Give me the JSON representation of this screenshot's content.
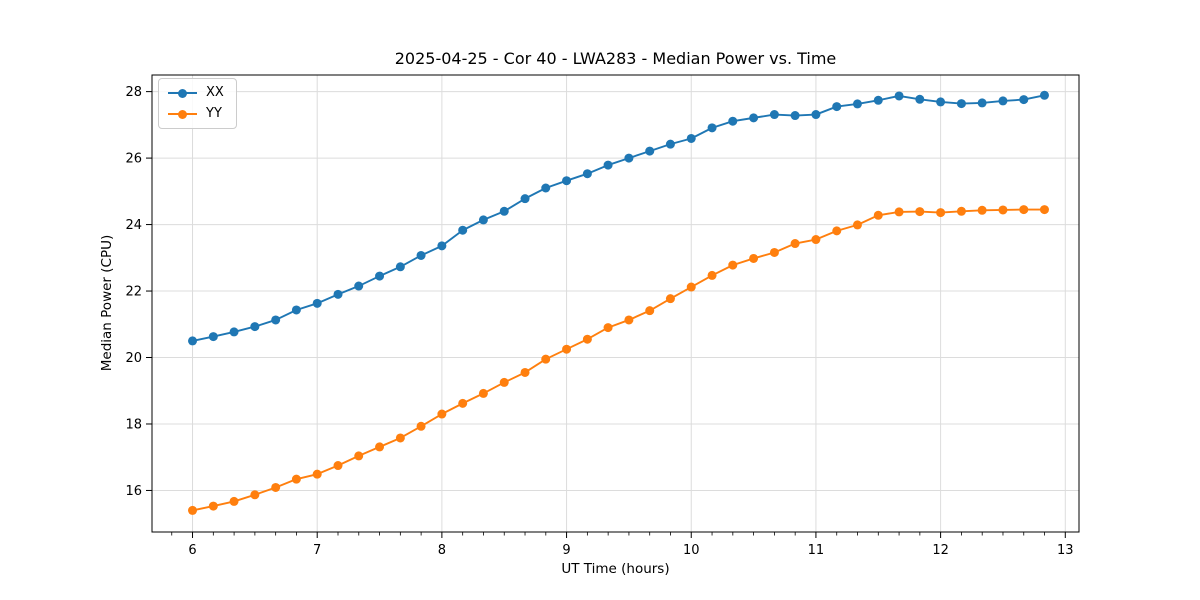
{
  "chart_data": {
    "type": "line",
    "title": "2025-04-25 - Cor 40 - LWA283 - Median Power vs. Time",
    "xlabel": "UT Time (hours)",
    "ylabel": "Median Power (CPU)",
    "xlim": [
      5.675,
      13.11
    ],
    "ylim": [
      14.75,
      28.5
    ],
    "x_ticks": [
      6,
      7,
      8,
      9,
      10,
      11,
      12,
      13
    ],
    "y_ticks": [
      16,
      18,
      20,
      22,
      24,
      26,
      28
    ],
    "x_minor_step": 0.16667,
    "grid": true,
    "grid_color": "#dcdcdc",
    "legend_position": "upper left",
    "colors": {
      "XX": "#1f77b4",
      "YY": "#ff7f0e"
    },
    "x": [
      6.0,
      6.167,
      6.333,
      6.5,
      6.667,
      6.833,
      7.0,
      7.167,
      7.333,
      7.5,
      7.667,
      7.833,
      8.0,
      8.167,
      8.333,
      8.5,
      8.667,
      8.833,
      9.0,
      9.167,
      9.333,
      9.5,
      9.667,
      9.833,
      10.0,
      10.167,
      10.333,
      10.5,
      10.667,
      10.833,
      11.0,
      11.167,
      11.333,
      11.5,
      11.667,
      11.833,
      12.0,
      12.167,
      12.333,
      12.5,
      12.667,
      12.833
    ],
    "series": [
      {
        "name": "XX",
        "values": [
          20.5,
          20.63,
          20.77,
          20.93,
          21.13,
          21.43,
          21.63,
          21.9,
          22.15,
          22.45,
          22.73,
          23.07,
          23.36,
          23.83,
          24.14,
          24.4,
          24.78,
          25.1,
          25.32,
          25.53,
          25.79,
          26.0,
          26.21,
          26.42,
          26.59,
          26.91,
          27.11,
          27.21,
          27.31,
          27.28,
          27.31,
          27.55,
          27.63,
          27.74,
          27.87,
          27.77,
          27.69,
          27.64,
          27.66,
          27.72,
          27.76,
          27.89
        ]
      },
      {
        "name": "YY",
        "values": [
          15.4,
          15.53,
          15.67,
          15.87,
          16.09,
          16.34,
          16.49,
          16.75,
          17.04,
          17.31,
          17.58,
          17.93,
          18.3,
          18.62,
          18.92,
          19.25,
          19.55,
          19.95,
          20.25,
          20.55,
          20.9,
          21.13,
          21.41,
          21.77,
          22.12,
          22.47,
          22.78,
          22.98,
          23.16,
          23.43,
          23.55,
          23.81,
          23.99,
          24.28,
          24.38,
          24.39,
          24.36,
          24.4,
          24.43,
          24.44,
          24.45,
          24.45
        ]
      }
    ]
  }
}
